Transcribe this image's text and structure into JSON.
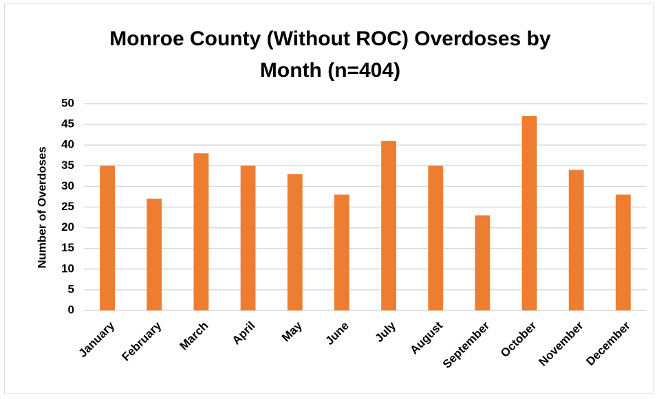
{
  "chart_data": {
    "type": "bar",
    "title": "Monroe County (Without ROC) Overdoses by Month (n=404)",
    "y_label": "Number of Overdoses",
    "categories": [
      "January",
      "February",
      "March",
      "April",
      "May",
      "June",
      "July",
      "August",
      "September",
      "October",
      "November",
      "December"
    ],
    "values": [
      35,
      27,
      38,
      35,
      33,
      28,
      41,
      35,
      23,
      47,
      34,
      28
    ],
    "color": "#ed7d31",
    "ylim": [
      0,
      50
    ],
    "yticks": [
      0,
      5,
      10,
      15,
      20,
      25,
      30,
      35,
      40,
      45,
      50
    ],
    "grid": true
  }
}
